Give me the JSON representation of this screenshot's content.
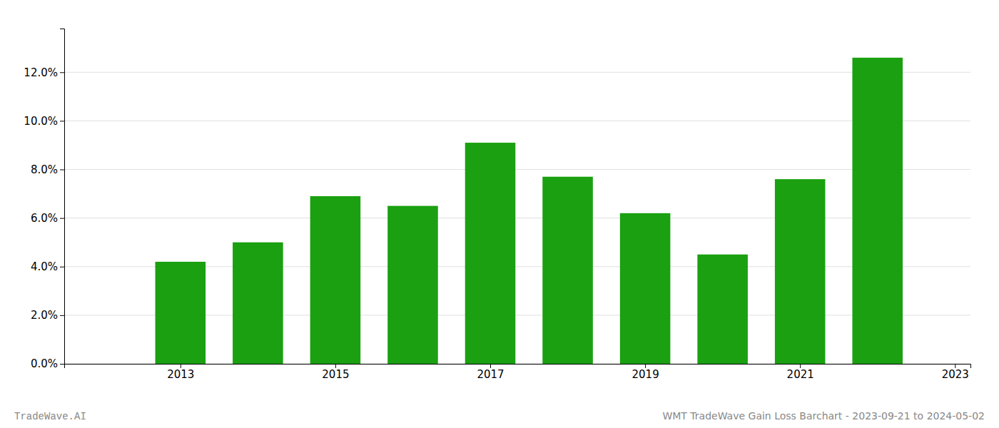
{
  "chart_data": {
    "type": "bar",
    "x": [
      2013,
      2014,
      2015,
      2016,
      2017,
      2018,
      2019,
      2020,
      2021,
      2022
    ],
    "values": [
      0.042,
      0.05,
      0.069,
      0.065,
      0.091,
      0.077,
      0.062,
      0.045,
      0.076,
      0.126
    ],
    "color": "#1aa010",
    "xlim": [
      2011.5,
      2023.2
    ],
    "xticks": [
      2013,
      2015,
      2017,
      2019,
      2021,
      2023
    ],
    "ylim": [
      0,
      0.138
    ],
    "yticks": [
      {
        "value": 0.0,
        "label": "0.0%"
      },
      {
        "value": 0.02,
        "label": "2.0%"
      },
      {
        "value": 0.04,
        "label": "4.0%"
      },
      {
        "value": 0.06,
        "label": "6.0%"
      },
      {
        "value": 0.08,
        "label": "8.0%"
      },
      {
        "value": 0.1,
        "label": "10.0%"
      },
      {
        "value": 0.12,
        "label": "12.0%"
      }
    ],
    "grid": true,
    "annotations": [
      "TradeWave.AI",
      "WMT TradeWave Gain Loss Barchart - 2023-09-21 to 2024-05-02"
    ]
  }
}
